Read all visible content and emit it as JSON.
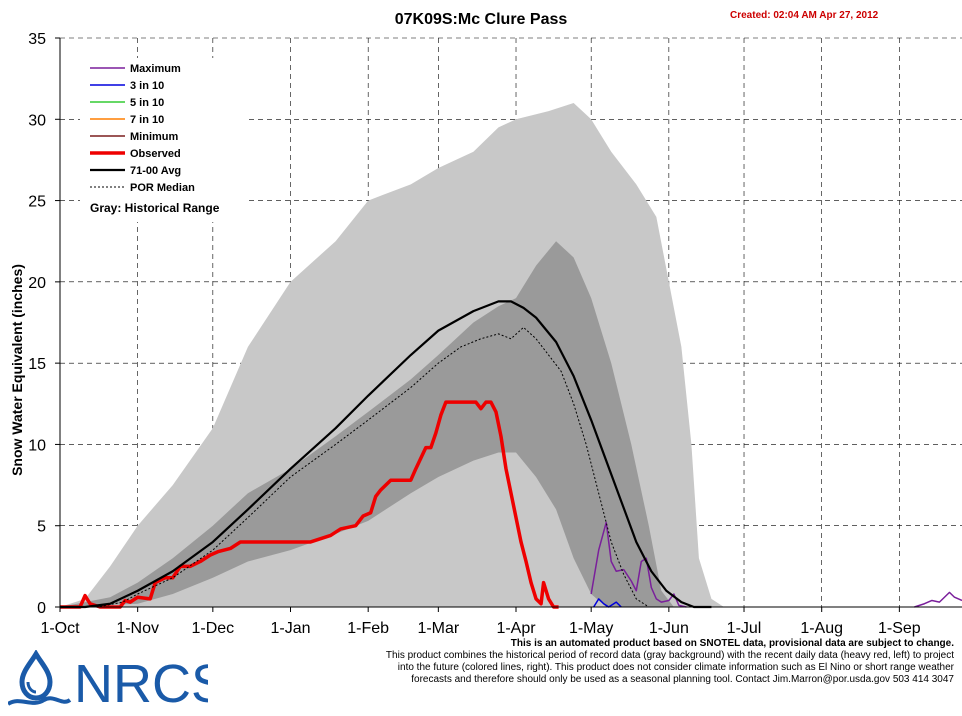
{
  "header": {
    "title": "07K09S:Mc Clure Pass",
    "created": "Created: 02:04 AM Apr 27, 2012"
  },
  "footer": {
    "line1": "This is an automated product based on SNOTEL data, provisional data are subject to change.",
    "line2": "This product combines the historical period of record data (gray background) with the recent daily data (heavy red, left) to project",
    "line3": "into the future (colored lines, right). This product does not consider climate information such as El Nino or short range weather",
    "line4": "forecasts and therefore should only be used as a seasonal planning tool. Contact Jim.Marron@por.usda.gov 503 414 3047",
    "logo_text": "NRCS",
    "logo_color": "#1a5aa8"
  },
  "chart_data": {
    "type": "line",
    "title": "07K09S:Mc Clure Pass",
    "ylabel": "Snow Water Equivalent (inches)",
    "xlabel": "",
    "ylim": [
      0,
      35
    ],
    "yticks": [
      0,
      5,
      10,
      15,
      20,
      25,
      30,
      35
    ],
    "xlim": [
      0,
      360
    ],
    "xticks": [
      {
        "day": 0,
        "label": "1-Oct"
      },
      {
        "day": 31,
        "label": "1-Nov"
      },
      {
        "day": 61,
        "label": "1-Dec"
      },
      {
        "day": 92,
        "label": "1-Jan"
      },
      {
        "day": 123,
        "label": "1-Feb"
      },
      {
        "day": 151,
        "label": "1-Mar"
      },
      {
        "day": 182,
        "label": "1-Apr"
      },
      {
        "day": 212,
        "label": "1-May"
      },
      {
        "day": 243,
        "label": "1-Jun"
      },
      {
        "day": 273,
        "label": "1-Jul"
      },
      {
        "day": 304,
        "label": "1-Aug"
      },
      {
        "day": 335,
        "label": "1-Sep"
      }
    ],
    "grid": true,
    "legend_position": "top-left",
    "legend_note": "Gray: Historical Range",
    "x_unit": "day of water year (0 = 1-Oct)",
    "historical_range": {
      "color": "#c8c8c8",
      "upper": [
        [
          0,
          0
        ],
        [
          10,
          0.5
        ],
        [
          20,
          2.5
        ],
        [
          31,
          5
        ],
        [
          45,
          7.5
        ],
        [
          61,
          11
        ],
        [
          75,
          16
        ],
        [
          92,
          20
        ],
        [
          110,
          22.5
        ],
        [
          123,
          25
        ],
        [
          140,
          26
        ],
        [
          151,
          27
        ],
        [
          165,
          28
        ],
        [
          175,
          29.5
        ],
        [
          182,
          30
        ],
        [
          195,
          30.5
        ],
        [
          205,
          31
        ],
        [
          212,
          30
        ],
        [
          220,
          28
        ],
        [
          230,
          26
        ],
        [
          238,
          24
        ],
        [
          243,
          20
        ],
        [
          248,
          16
        ],
        [
          252,
          10
        ],
        [
          255,
          3
        ],
        [
          260,
          0.5
        ],
        [
          265,
          0
        ]
      ],
      "lower": [
        [
          0,
          0
        ],
        [
          31,
          0
        ],
        [
          61,
          0
        ],
        [
          92,
          0
        ],
        [
          123,
          0
        ],
        [
          151,
          0
        ],
        [
          182,
          0
        ],
        [
          212,
          0
        ],
        [
          265,
          0
        ]
      ]
    },
    "interquartile_band": {
      "color": "#9a9a9a",
      "upper": [
        [
          0,
          0
        ],
        [
          20,
          0.6
        ],
        [
          31,
          1.5
        ],
        [
          45,
          3
        ],
        [
          61,
          5
        ],
        [
          75,
          7
        ],
        [
          92,
          8.5
        ],
        [
          110,
          10.5
        ],
        [
          123,
          12
        ],
        [
          140,
          14
        ],
        [
          151,
          15.5
        ],
        [
          165,
          17.5
        ],
        [
          175,
          18.5
        ],
        [
          182,
          19
        ],
        [
          190,
          21
        ],
        [
          198,
          22.5
        ],
        [
          205,
          21.5
        ],
        [
          212,
          19
        ],
        [
          220,
          15
        ],
        [
          228,
          10
        ],
        [
          235,
          5
        ],
        [
          240,
          1
        ],
        [
          245,
          0
        ]
      ],
      "lower": [
        [
          0,
          0
        ],
        [
          31,
          0.2
        ],
        [
          45,
          0.8
        ],
        [
          61,
          1.8
        ],
        [
          75,
          2.8
        ],
        [
          92,
          3.5
        ],
        [
          110,
          4.5
        ],
        [
          123,
          5.3
        ],
        [
          140,
          7
        ],
        [
          151,
          8
        ],
        [
          165,
          9
        ],
        [
          175,
          9.5
        ],
        [
          182,
          9.5
        ],
        [
          190,
          8
        ],
        [
          198,
          6
        ],
        [
          205,
          3
        ],
        [
          212,
          0.8
        ],
        [
          218,
          0
        ],
        [
          245,
          0
        ]
      ]
    },
    "series": [
      {
        "name": "Maximum",
        "color": "#7a1f9b",
        "width": 1.5,
        "values": [
          [
            212,
            0.8
          ],
          [
            215,
            3.5
          ],
          [
            218,
            5.2
          ],
          [
            220,
            2.8
          ],
          [
            222,
            2.2
          ],
          [
            225,
            2.3
          ],
          [
            228,
            1.6
          ],
          [
            230,
            1.0
          ],
          [
            232,
            2.8
          ],
          [
            234,
            3.0
          ],
          [
            236,
            1.2
          ],
          [
            238,
            0.5
          ],
          [
            240,
            0.3
          ],
          [
            243,
            0.4
          ],
          [
            245,
            0.8
          ],
          [
            247,
            0.1
          ],
          [
            250,
            0
          ]
        ]
      },
      {
        "name": "Maximum",
        "color": "#7a1f9b",
        "width": 1.5,
        "values": [
          [
            341,
            0
          ],
          [
            345,
            0.2
          ],
          [
            348,
            0.4
          ],
          [
            351,
            0.3
          ],
          [
            353,
            0.6
          ],
          [
            355,
            0.9
          ],
          [
            357,
            0.6
          ],
          [
            360,
            0.4
          ]
        ]
      },
      {
        "name": "3 in 10",
        "color": "#0000dd",
        "width": 1.5,
        "values": [
          [
            213,
            0
          ],
          [
            215,
            0.5
          ],
          [
            217,
            0.2
          ],
          [
            219,
            0
          ],
          [
            222,
            0.3
          ],
          [
            224,
            0
          ]
        ]
      },
      {
        "name": "5 in 10",
        "color": "#33cc33",
        "width": 1.5,
        "values": []
      },
      {
        "name": "7 in 10",
        "color": "#ff7f00",
        "width": 1.5,
        "values": []
      },
      {
        "name": "Minimum",
        "color": "#7b1f1f",
        "width": 1.5,
        "values": []
      },
      {
        "name": "Observed",
        "color": "#ee0000",
        "width": 3.5,
        "values": [
          [
            0,
            0
          ],
          [
            8,
            0
          ],
          [
            10,
            0.7
          ],
          [
            12,
            0.2
          ],
          [
            16,
            0
          ],
          [
            24,
            0
          ],
          [
            26,
            0.4
          ],
          [
            28,
            0.3
          ],
          [
            31,
            0.6
          ],
          [
            36,
            0.5
          ],
          [
            38,
            1.5
          ],
          [
            42,
            1.8
          ],
          [
            45,
            1.8
          ],
          [
            48,
            2.5
          ],
          [
            52,
            2.5
          ],
          [
            56,
            2.8
          ],
          [
            60,
            3.2
          ],
          [
            63,
            3.4
          ],
          [
            68,
            3.6
          ],
          [
            72,
            4
          ],
          [
            80,
            4
          ],
          [
            90,
            4
          ],
          [
            100,
            4
          ],
          [
            108,
            4.4
          ],
          [
            112,
            4.8
          ],
          [
            118,
            5
          ],
          [
            121,
            5.6
          ],
          [
            124,
            5.8
          ],
          [
            126,
            6.8
          ],
          [
            128,
            7.2
          ],
          [
            132,
            7.8
          ],
          [
            140,
            7.8
          ],
          [
            142,
            8.5
          ],
          [
            146,
            9.8
          ],
          [
            148,
            9.8
          ],
          [
            150,
            10.7
          ],
          [
            152,
            11.8
          ],
          [
            154,
            12.6
          ],
          [
            166,
            12.6
          ],
          [
            168,
            12.2
          ],
          [
            170,
            12.6
          ],
          [
            172,
            12.6
          ],
          [
            174,
            12.0
          ],
          [
            176,
            10.5
          ],
          [
            178,
            8.5
          ],
          [
            180,
            7.0
          ],
          [
            182,
            5.5
          ],
          [
            184,
            4.0
          ],
          [
            186,
            2.8
          ],
          [
            188,
            1.5
          ],
          [
            190,
            0.5
          ],
          [
            192,
            0.2
          ],
          [
            193,
            1.5
          ],
          [
            195,
            0.5
          ],
          [
            197,
            0
          ],
          [
            199,
            0
          ]
        ]
      },
      {
        "name": "71-00 Avg",
        "color": "#000000",
        "width": 2.2,
        "values": [
          [
            0,
            0
          ],
          [
            10,
            0
          ],
          [
            20,
            0.2
          ],
          [
            31,
            1
          ],
          [
            45,
            2.2
          ],
          [
            61,
            4
          ],
          [
            75,
            6
          ],
          [
            92,
            8.5
          ],
          [
            110,
            11
          ],
          [
            123,
            13
          ],
          [
            140,
            15.5
          ],
          [
            151,
            17
          ],
          [
            165,
            18.2
          ],
          [
            175,
            18.8
          ],
          [
            180,
            18.8
          ],
          [
            185,
            18.4
          ],
          [
            190,
            17.8
          ],
          [
            198,
            16.3
          ],
          [
            205,
            14.2
          ],
          [
            212,
            11.5
          ],
          [
            218,
            9
          ],
          [
            224,
            6.5
          ],
          [
            230,
            4
          ],
          [
            236,
            2.2
          ],
          [
            242,
            1
          ],
          [
            248,
            0.3
          ],
          [
            253,
            0
          ],
          [
            260,
            0
          ]
        ]
      },
      {
        "name": "POR Median",
        "color": "#000000",
        "width": 1,
        "dashed": true,
        "values": [
          [
            0,
            0
          ],
          [
            15,
            0
          ],
          [
            25,
            0.3
          ],
          [
            31,
            0.8
          ],
          [
            45,
            1.8
          ],
          [
            61,
            3.5
          ],
          [
            75,
            5.5
          ],
          [
            92,
            8
          ],
          [
            110,
            10
          ],
          [
            123,
            11.5
          ],
          [
            140,
            13.5
          ],
          [
            151,
            15
          ],
          [
            160,
            16
          ],
          [
            168,
            16.5
          ],
          [
            175,
            16.8
          ],
          [
            180,
            16.5
          ],
          [
            185,
            17.2
          ],
          [
            190,
            16.5
          ],
          [
            195,
            15.5
          ],
          [
            200,
            14.5
          ],
          [
            205,
            12.5
          ],
          [
            210,
            10
          ],
          [
            215,
            7
          ],
          [
            220,
            4
          ],
          [
            225,
            2
          ],
          [
            230,
            0.5
          ],
          [
            235,
            0
          ]
        ]
      }
    ]
  }
}
